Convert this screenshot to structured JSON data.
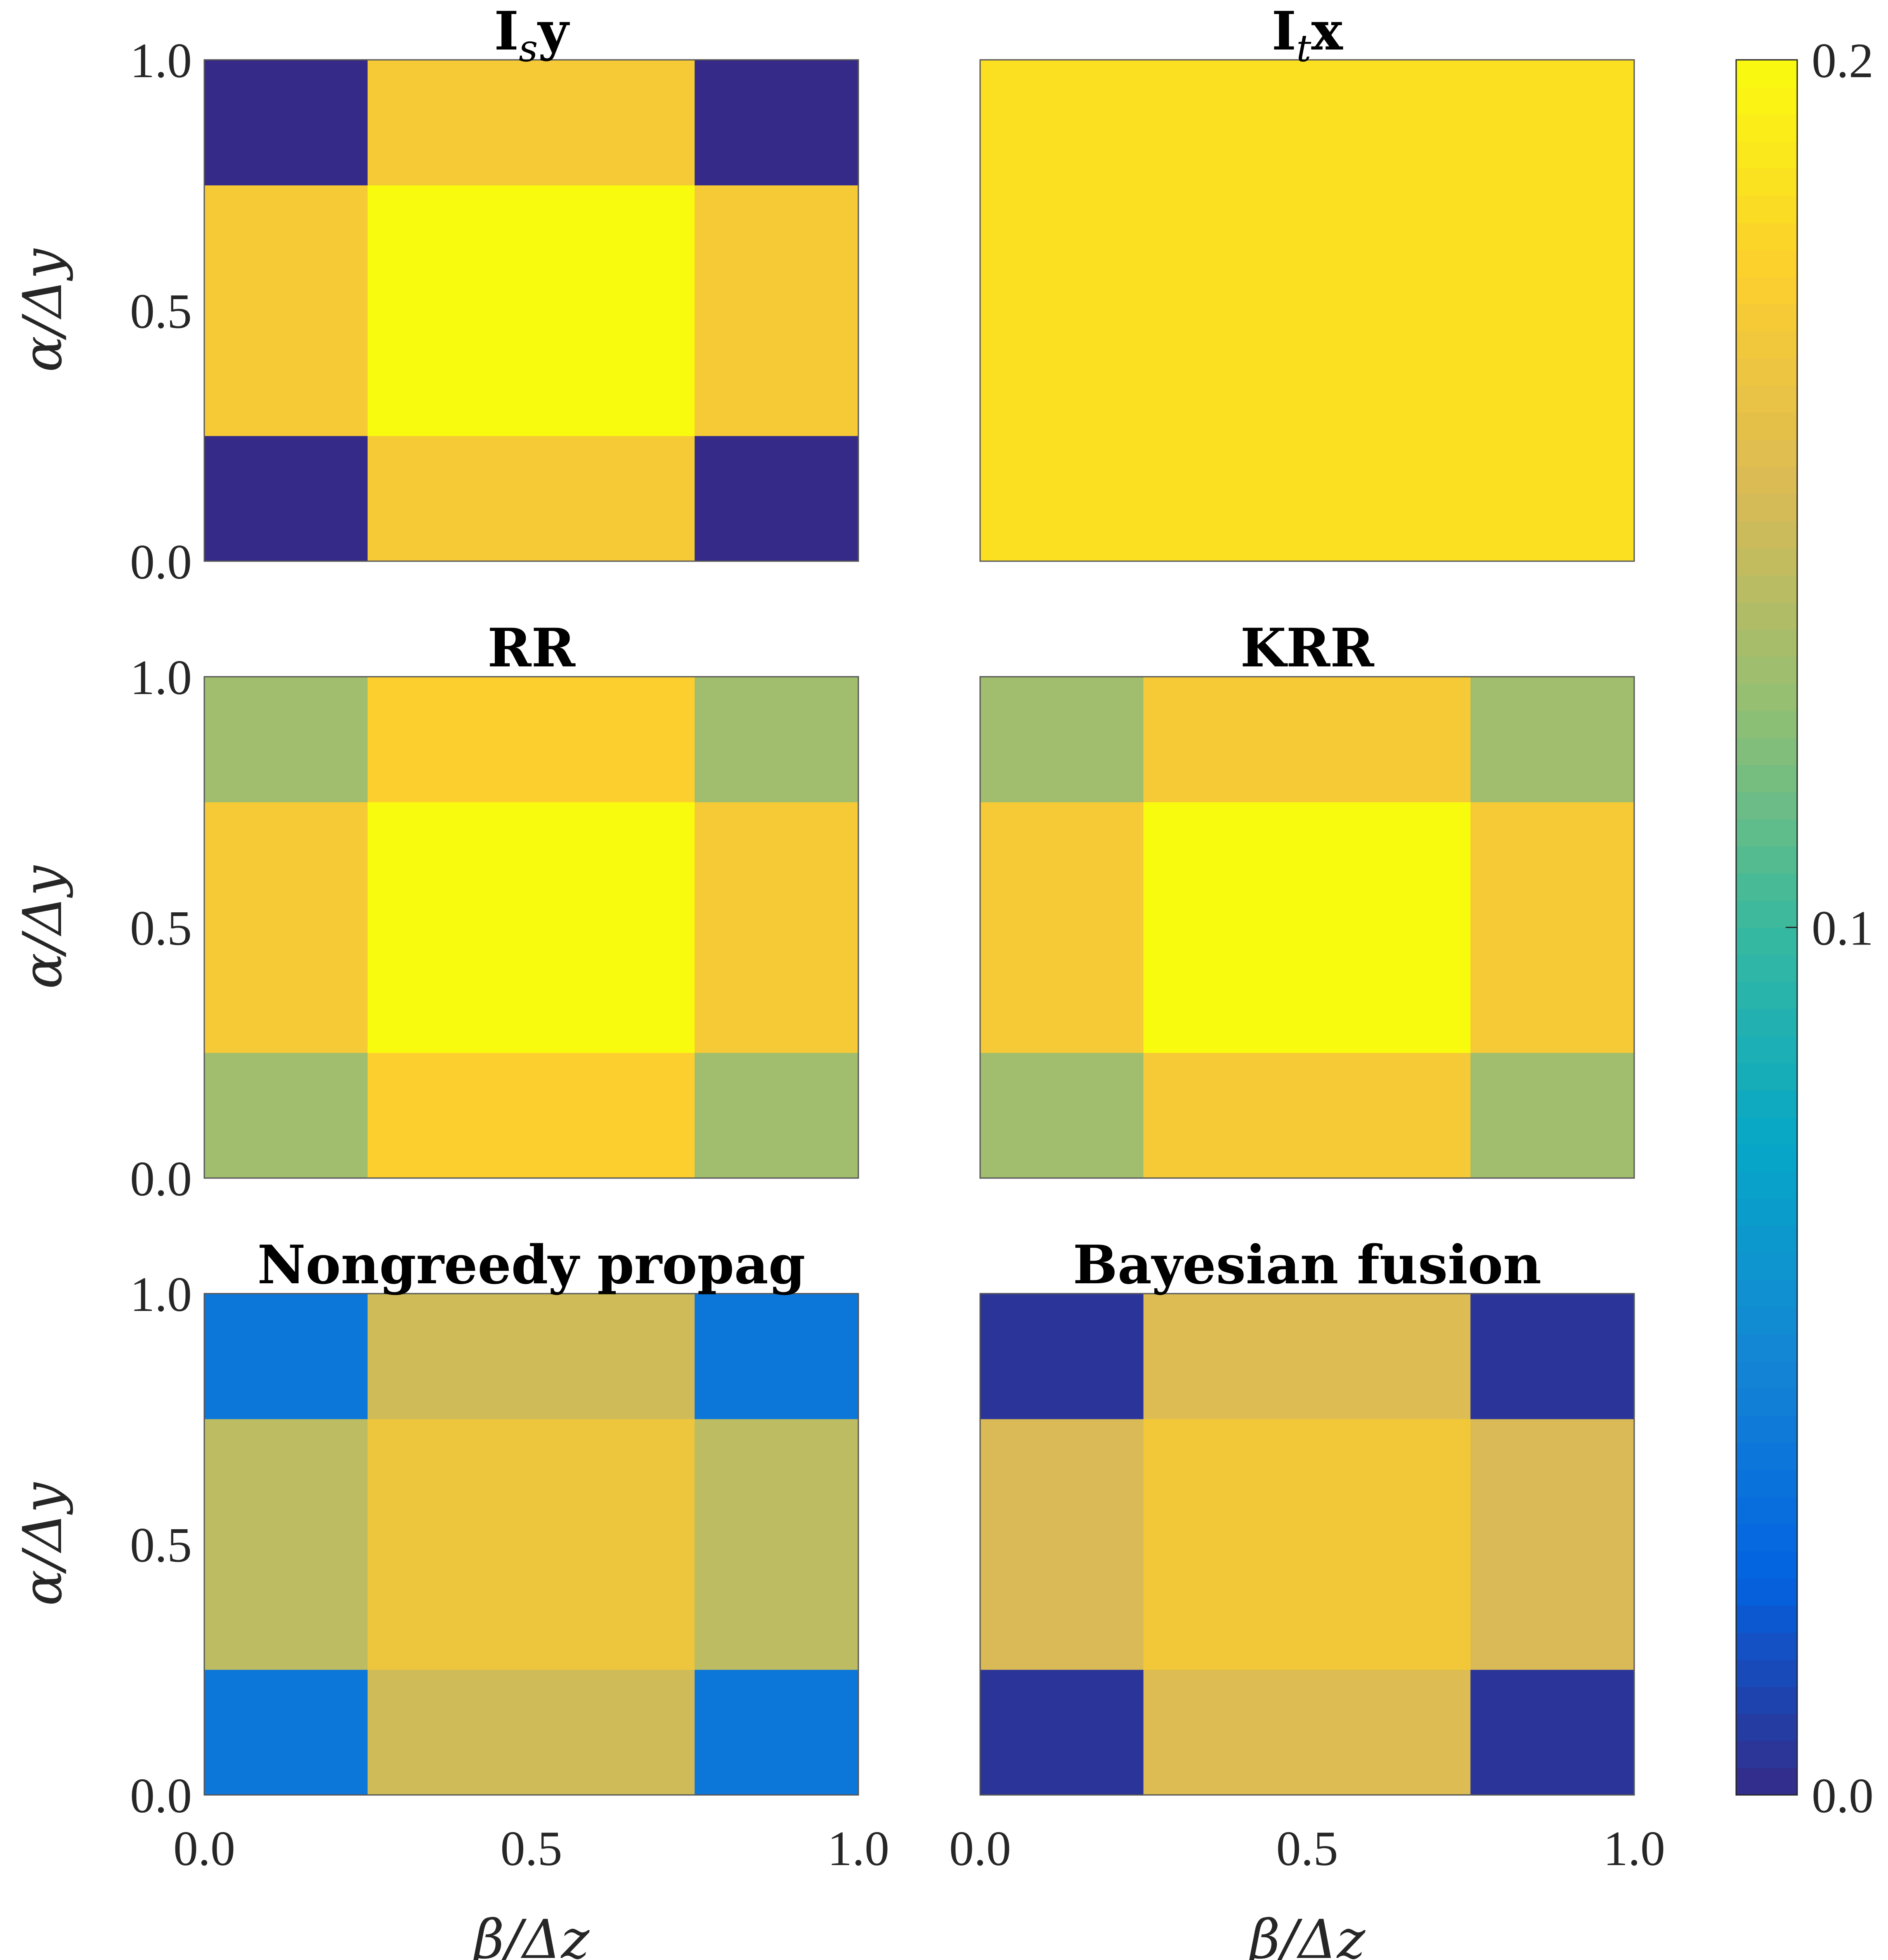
{
  "chart_data": [
    {
      "type": "heatmap",
      "title": "I_s y",
      "title_main": "I",
      "title_sub": "s",
      "title_tail": "y",
      "xlabel": "",
      "ylabel": "α/Δy",
      "x_ticks": [],
      "y_ticks": [
        "0.0",
        "0.5",
        "1.0"
      ],
      "xlim": [
        0,
        1
      ],
      "ylim": [
        0,
        1
      ],
      "x_edges": [
        0,
        0.25,
        0.75,
        1.0
      ],
      "y_edges": [
        0,
        0.25,
        0.75,
        1.0
      ],
      "values": [
        [
          0.0,
          0.17,
          0.0
        ],
        [
          0.17,
          0.2,
          0.17
        ],
        [
          0.0,
          0.17,
          0.0
        ]
      ]
    },
    {
      "type": "heatmap",
      "title": "I_t x",
      "title_main": "I",
      "title_sub": "t",
      "title_tail": "x",
      "xlabel": "",
      "ylabel": "",
      "x_ticks": [],
      "y_ticks": [],
      "xlim": [
        0,
        1
      ],
      "ylim": [
        0,
        1
      ],
      "x_edges": [
        0,
        0.25,
        0.75,
        1.0
      ],
      "y_edges": [
        0,
        0.25,
        0.75,
        1.0
      ],
      "values": [
        [
          0.185,
          0.185,
          0.185
        ],
        [
          0.185,
          0.185,
          0.185
        ],
        [
          0.185,
          0.185,
          0.185
        ]
      ]
    },
    {
      "type": "heatmap",
      "title": "RR",
      "xlabel": "",
      "ylabel": "α/Δy",
      "x_ticks": [],
      "y_ticks": [
        "0.0",
        "0.5",
        "1.0"
      ],
      "xlim": [
        0,
        1
      ],
      "ylim": [
        0,
        1
      ],
      "x_edges": [
        0,
        0.25,
        0.75,
        1.0
      ],
      "y_edges": [
        0,
        0.25,
        0.75,
        1.0
      ],
      "values": [
        [
          0.13,
          0.175,
          0.13
        ],
        [
          0.17,
          0.2,
          0.17
        ],
        [
          0.13,
          0.175,
          0.13
        ]
      ]
    },
    {
      "type": "heatmap",
      "title": "KRR",
      "xlabel": "",
      "ylabel": "",
      "x_ticks": [],
      "y_ticks": [],
      "xlim": [
        0,
        1
      ],
      "ylim": [
        0,
        1
      ],
      "x_edges": [
        0,
        0.25,
        0.75,
        1.0
      ],
      "y_edges": [
        0,
        0.25,
        0.75,
        1.0
      ],
      "values": [
        [
          0.13,
          0.17,
          0.13
        ],
        [
          0.17,
          0.2,
          0.17
        ],
        [
          0.13,
          0.17,
          0.13
        ]
      ]
    },
    {
      "type": "heatmap",
      "title": "Nongreedy propag",
      "xlabel": "β/Δz",
      "ylabel": "α/Δy",
      "x_ticks": [
        "0.0",
        "0.5",
        "1.0"
      ],
      "y_ticks": [
        "0.0",
        "0.5",
        "1.0"
      ],
      "xlim": [
        0,
        1
      ],
      "ylim": [
        0,
        1
      ],
      "x_edges": [
        0,
        0.25,
        0.75,
        1.0
      ],
      "y_edges": [
        0,
        0.25,
        0.75,
        1.0
      ],
      "values": [
        [
          0.04,
          0.147,
          0.04
        ],
        [
          0.14,
          0.165,
          0.14
        ],
        [
          0.04,
          0.147,
          0.04
        ]
      ]
    },
    {
      "type": "heatmap",
      "title": "Bayesian fusion",
      "xlabel": "β/Δz",
      "ylabel": "",
      "x_ticks": [
        "0.0",
        "0.5",
        "1.0"
      ],
      "y_ticks": [],
      "xlim": [
        0,
        1
      ],
      "ylim": [
        0,
        1
      ],
      "x_edges": [
        0,
        0.25,
        0.75,
        1.0
      ],
      "y_edges": [
        0,
        0.25,
        0.75,
        1.0
      ],
      "values": [
        [
          0.005,
          0.152,
          0.005
        ],
        [
          0.15,
          0.168,
          0.15
        ],
        [
          0.005,
          0.152,
          0.005
        ]
      ]
    }
  ],
  "colorbar": {
    "range": [
      0,
      0.2
    ],
    "ticks": [
      {
        "value": 0.0,
        "label": "0.0"
      },
      {
        "value": 0.1,
        "label": "0.1"
      },
      {
        "value": 0.2,
        "label": "0.2"
      }
    ],
    "colormap": "parula",
    "colormap_stops": [
      "#352a87",
      "#0363e1",
      "#1485d4",
      "#06a7c6",
      "#38b99e",
      "#92bf73",
      "#d9ba56",
      "#fcce2e",
      "#f9fb0e"
    ]
  }
}
